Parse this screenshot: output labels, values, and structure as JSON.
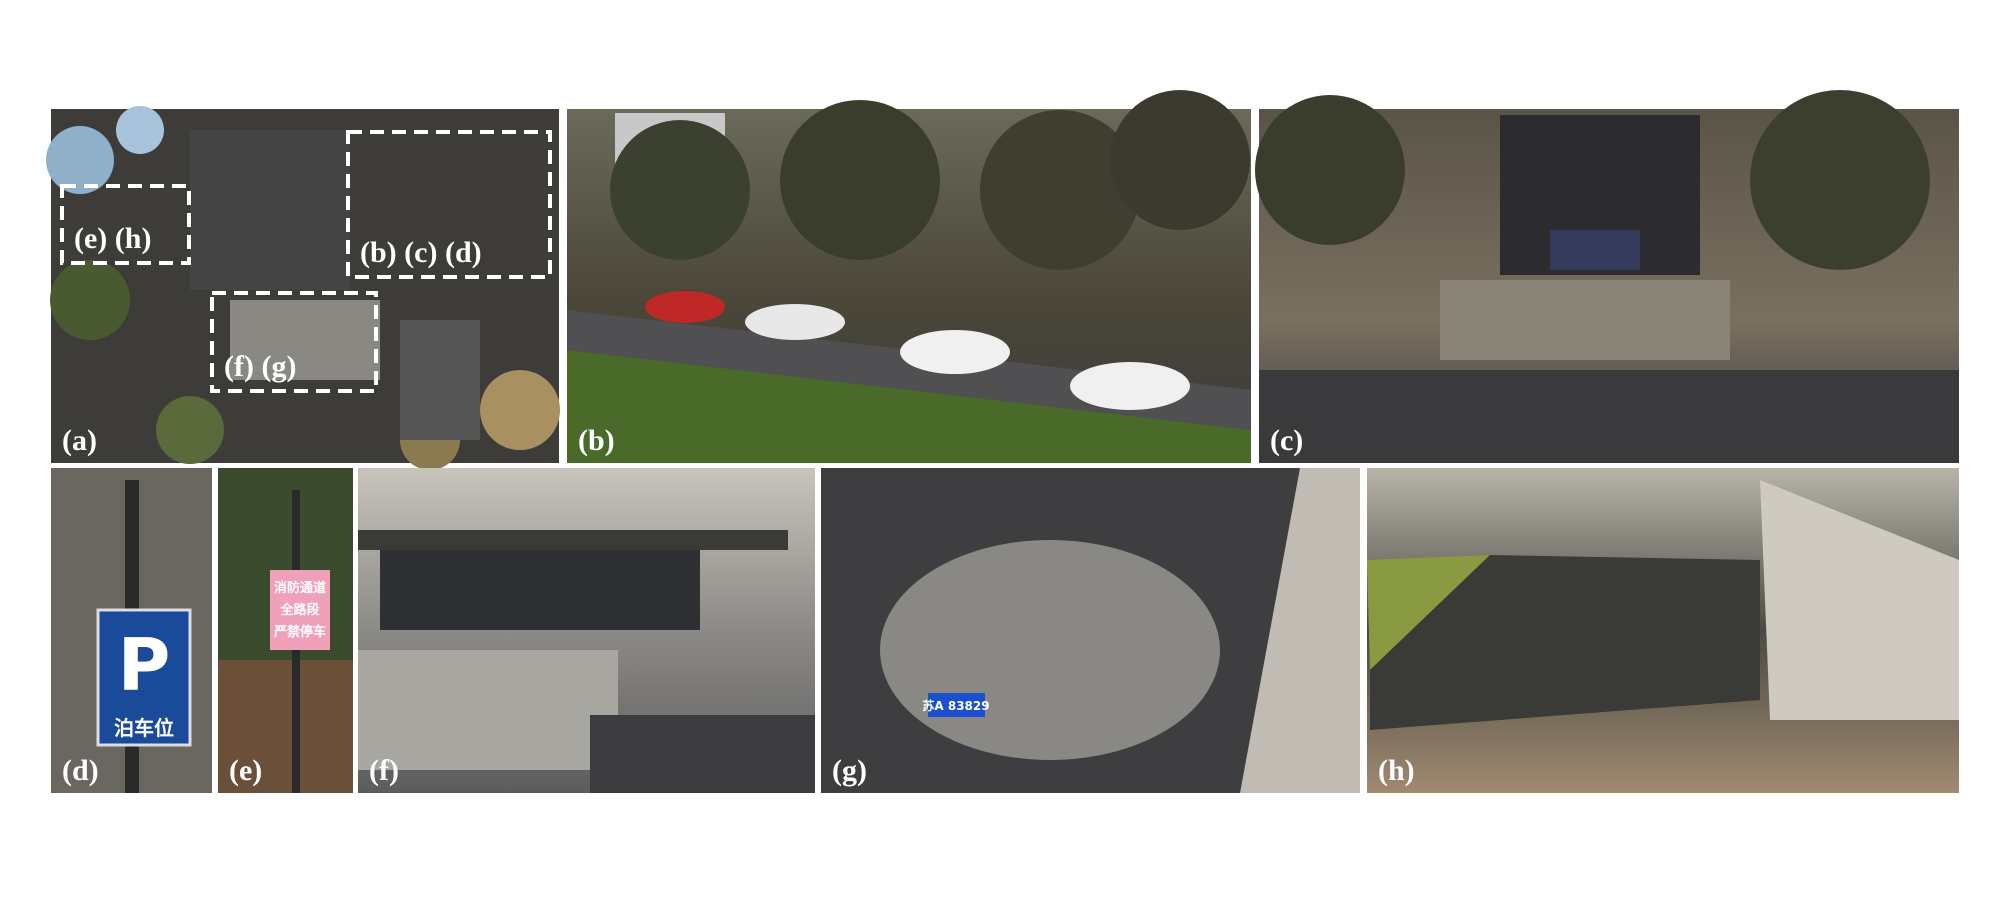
{
  "panels": [
    {
      "label": "(a)"
    },
    {
      "label": "(b)"
    },
    {
      "label": "(c)"
    },
    {
      "label": "(d)"
    },
    {
      "label": "(e)"
    },
    {
      "label": "(f)"
    },
    {
      "label": "(g)"
    },
    {
      "label": "(h)"
    }
  ],
  "overview_boxes": [
    {
      "label": "(e) (h)"
    },
    {
      "label": "(b) (c) (d)"
    },
    {
      "label": "(f) (g)"
    }
  ],
  "signs": {
    "parking": "泊车位",
    "fire_lane": [
      "消防通道",
      "全路段",
      "严禁停车"
    ]
  },
  "plate": "苏A 83829"
}
